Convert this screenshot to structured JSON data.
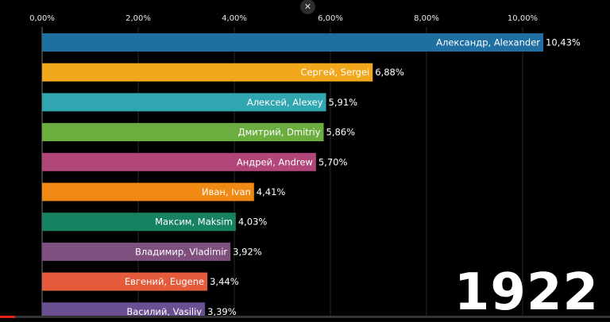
{
  "controls": {
    "close_symbol": "✕"
  },
  "year_label": "1922",
  "progress": {
    "fraction": 0.025,
    "color": "#e62117"
  },
  "chart_data": {
    "type": "bar",
    "orientation": "horizontal",
    "xlim": [
      0,
      11
    ],
    "ticks": [
      0,
      2,
      4,
      6,
      8,
      10
    ],
    "tick_labels": [
      "0,00%",
      "2,00%",
      "4,00%",
      "6,00%",
      "8,00%",
      "10,00%"
    ],
    "tick_position": "top",
    "grid": true,
    "categories": [
      "Александр, Alexander",
      "Сергей, Sergei",
      "Алексей, Alexey",
      "Дмитрий, Dmitriy",
      "Андрей, Andrew",
      "Иван, Ivan",
      "Максим, Maksim",
      "Владимир, Vladimir",
      "Евгений, Eugene",
      "Василий, Vasiliy"
    ],
    "values": [
      10.43,
      6.88,
      5.91,
      5.86,
      5.7,
      4.41,
      4.03,
      3.92,
      3.44,
      3.39
    ],
    "value_labels": [
      "10,43%",
      "6,88%",
      "5,91%",
      "5,86%",
      "5,70%",
      "4,41%",
      "4,03%",
      "3,92%",
      "3,44%",
      "3,39%"
    ],
    "colors": [
      "#1f6fa3",
      "#f2a81d",
      "#2fa6b0",
      "#6cad3f",
      "#b04679",
      "#f08a13",
      "#168262",
      "#7f4f80",
      "#e45c3b",
      "#6a4f93"
    ]
  }
}
